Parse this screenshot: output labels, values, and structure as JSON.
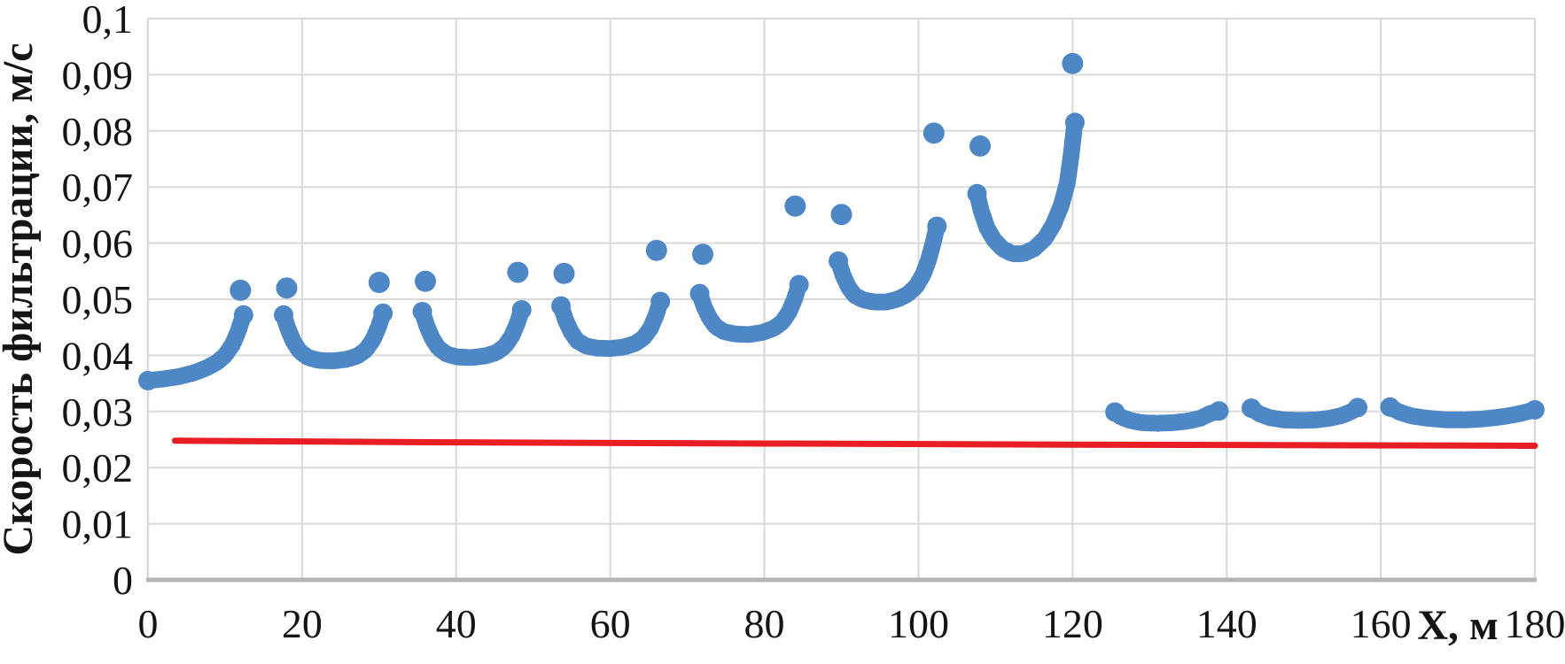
{
  "chart_data": {
    "type": "scatter",
    "title": "",
    "xlabel": "X, м",
    "ylabel": "Скорость фильтрации, м/с",
    "xlim": [
      0,
      180
    ],
    "ylim": [
      0,
      0.1
    ],
    "grid": true,
    "legend": false,
    "decimal_separator": ",",
    "x_ticks": [
      0,
      20,
      40,
      60,
      80,
      100,
      120,
      140,
      160,
      180
    ],
    "x_tick_labels": [
      "0",
      "20",
      "40",
      "60",
      "80",
      "100",
      "120",
      "140",
      "160",
      "180"
    ],
    "y_ticks": [
      0,
      0.01,
      0.02,
      0.03,
      0.04,
      0.05,
      0.06,
      0.07,
      0.08,
      0.09,
      0.1
    ],
    "y_tick_labels": [
      "0",
      "0,01",
      "0,02",
      "0,03",
      "0,04",
      "0,05",
      "0,06",
      "0,07",
      "0,08",
      "0,09",
      "0,1"
    ],
    "colors": {
      "scatter": "#4e87c5",
      "line": "#e81e24",
      "grid": "#d9d9d9",
      "axis": "#b5b5b5",
      "text": "#141414"
    },
    "series": [
      {
        "id": "filtration-velocity-scatter",
        "type": "scatter",
        "color": "#4e87c5",
        "segments": [
          [
            [
              0,
              0.0355
            ],
            [
              2,
              0.0358
            ],
            [
              4,
              0.0362
            ],
            [
              6,
              0.0369
            ],
            [
              7.5,
              0.0377
            ],
            [
              9,
              0.0388
            ],
            [
              10,
              0.04
            ],
            [
              11,
              0.042
            ],
            [
              11.7,
              0.0443
            ],
            [
              12.4,
              0.0472
            ]
          ],
          [
            [
              17.6,
              0.0472
            ],
            [
              18.2,
              0.0446
            ],
            [
              18.9,
              0.0424
            ],
            [
              19.7,
              0.0407
            ],
            [
              20.8,
              0.0396
            ],
            [
              22.2,
              0.0391
            ],
            [
              24,
              0.039
            ],
            [
              25.8,
              0.0393
            ],
            [
              27.2,
              0.0399
            ],
            [
              28.3,
              0.041
            ],
            [
              29.2,
              0.0428
            ],
            [
              29.9,
              0.045
            ],
            [
              30.5,
              0.0475
            ]
          ],
          [
            [
              35.6,
              0.0478
            ],
            [
              36.2,
              0.0452
            ],
            [
              36.9,
              0.043
            ],
            [
              37.7,
              0.0413
            ],
            [
              38.8,
              0.0402
            ],
            [
              40.2,
              0.0397
            ],
            [
              42,
              0.0396
            ],
            [
              43.8,
              0.0399
            ],
            [
              45.2,
              0.0405
            ],
            [
              46.3,
              0.0416
            ],
            [
              47.2,
              0.0434
            ],
            [
              47.9,
              0.0456
            ],
            [
              48.5,
              0.0481
            ]
          ],
          [
            [
              53.6,
              0.0488
            ],
            [
              54.2,
              0.0463
            ],
            [
              54.9,
              0.0442
            ],
            [
              55.7,
              0.0426
            ],
            [
              56.8,
              0.0417
            ],
            [
              58.2,
              0.0413
            ],
            [
              60,
              0.0412
            ],
            [
              61.8,
              0.0415
            ],
            [
              63.2,
              0.0421
            ],
            [
              64.3,
              0.0431
            ],
            [
              65.2,
              0.0448
            ],
            [
              65.9,
              0.047
            ],
            [
              66.5,
              0.0496
            ]
          ],
          [
            [
              71.6,
              0.051
            ],
            [
              72.2,
              0.0486
            ],
            [
              72.9,
              0.0466
            ],
            [
              73.7,
              0.0451
            ],
            [
              74.8,
              0.0442
            ],
            [
              76.2,
              0.0438
            ],
            [
              78,
              0.0437
            ],
            [
              79.8,
              0.0441
            ],
            [
              81.2,
              0.0448
            ],
            [
              82.3,
              0.0459
            ],
            [
              83.2,
              0.0477
            ],
            [
              83.9,
              0.05
            ],
            [
              84.5,
              0.0526
            ]
          ],
          [
            [
              89.6,
              0.0568
            ],
            [
              90.2,
              0.0543
            ],
            [
              90.9,
              0.0522
            ],
            [
              91.7,
              0.0507
            ],
            [
              92.8,
              0.0499
            ],
            [
              94.2,
              0.0495
            ],
            [
              95.8,
              0.0495
            ],
            [
              97.3,
              0.05
            ],
            [
              98.6,
              0.0509
            ],
            [
              99.7,
              0.0523
            ],
            [
              100.6,
              0.0544
            ],
            [
              101.3,
              0.057
            ],
            [
              101.9,
              0.06
            ],
            [
              102.4,
              0.063
            ]
          ],
          [
            [
              107.6,
              0.0688
            ],
            [
              108.2,
              0.0655
            ],
            [
              108.9,
              0.0627
            ],
            [
              109.8,
              0.0606
            ],
            [
              110.9,
              0.059
            ],
            [
              112.2,
              0.0581
            ],
            [
              113.6,
              0.0581
            ],
            [
              115,
              0.059
            ],
            [
              116.4,
              0.0608
            ],
            [
              117.5,
              0.0633
            ],
            [
              118.5,
              0.0666
            ],
            [
              119.3,
              0.0706
            ],
            [
              119.8,
              0.0755
            ],
            [
              120.3,
              0.0815
            ]
          ],
          [
            [
              125.5,
              0.0299
            ],
            [
              126.3,
              0.029
            ],
            [
              127.5,
              0.0284
            ],
            [
              129,
              0.028
            ],
            [
              131,
              0.0279
            ],
            [
              133,
              0.028
            ],
            [
              135,
              0.0283
            ],
            [
              136.6,
              0.0288
            ],
            [
              137.8,
              0.0296
            ],
            [
              139,
              0.0301
            ]
          ],
          [
            [
              143.2,
              0.0306
            ],
            [
              144.2,
              0.0296
            ],
            [
              145.6,
              0.0289
            ],
            [
              147.4,
              0.0285
            ],
            [
              149.5,
              0.0284
            ],
            [
              151.6,
              0.0285
            ],
            [
              153.4,
              0.0288
            ],
            [
              155,
              0.0293
            ],
            [
              156.2,
              0.03
            ],
            [
              157,
              0.0307
            ]
          ],
          [
            [
              161.2,
              0.0308
            ],
            [
              162.4,
              0.0299
            ],
            [
              164,
              0.0292
            ],
            [
              166,
              0.0288
            ],
            [
              168.5,
              0.0285
            ],
            [
              171,
              0.0285
            ],
            [
              173.5,
              0.0287
            ],
            [
              176,
              0.0291
            ],
            [
              178,
              0.0296
            ],
            [
              180,
              0.0303
            ]
          ]
        ],
        "peak_points": [
          [
            12,
            0.0516
          ],
          [
            18,
            0.052
          ],
          [
            30,
            0.053
          ],
          [
            36,
            0.0532
          ],
          [
            48,
            0.0548
          ],
          [
            54,
            0.0546
          ],
          [
            66,
            0.0587
          ],
          [
            72,
            0.058
          ],
          [
            84,
            0.0666
          ],
          [
            90,
            0.0651
          ],
          [
            102,
            0.0796
          ],
          [
            108,
            0.0773
          ],
          [
            120,
            0.092
          ]
        ]
      },
      {
        "id": "reference-line",
        "type": "line",
        "color": "#e81e24",
        "points": [
          [
            3.5,
            0.0248
          ],
          [
            40,
            0.0245
          ],
          [
            80,
            0.0243
          ],
          [
            120,
            0.0241
          ],
          [
            180,
            0.0239
          ]
        ]
      }
    ]
  }
}
